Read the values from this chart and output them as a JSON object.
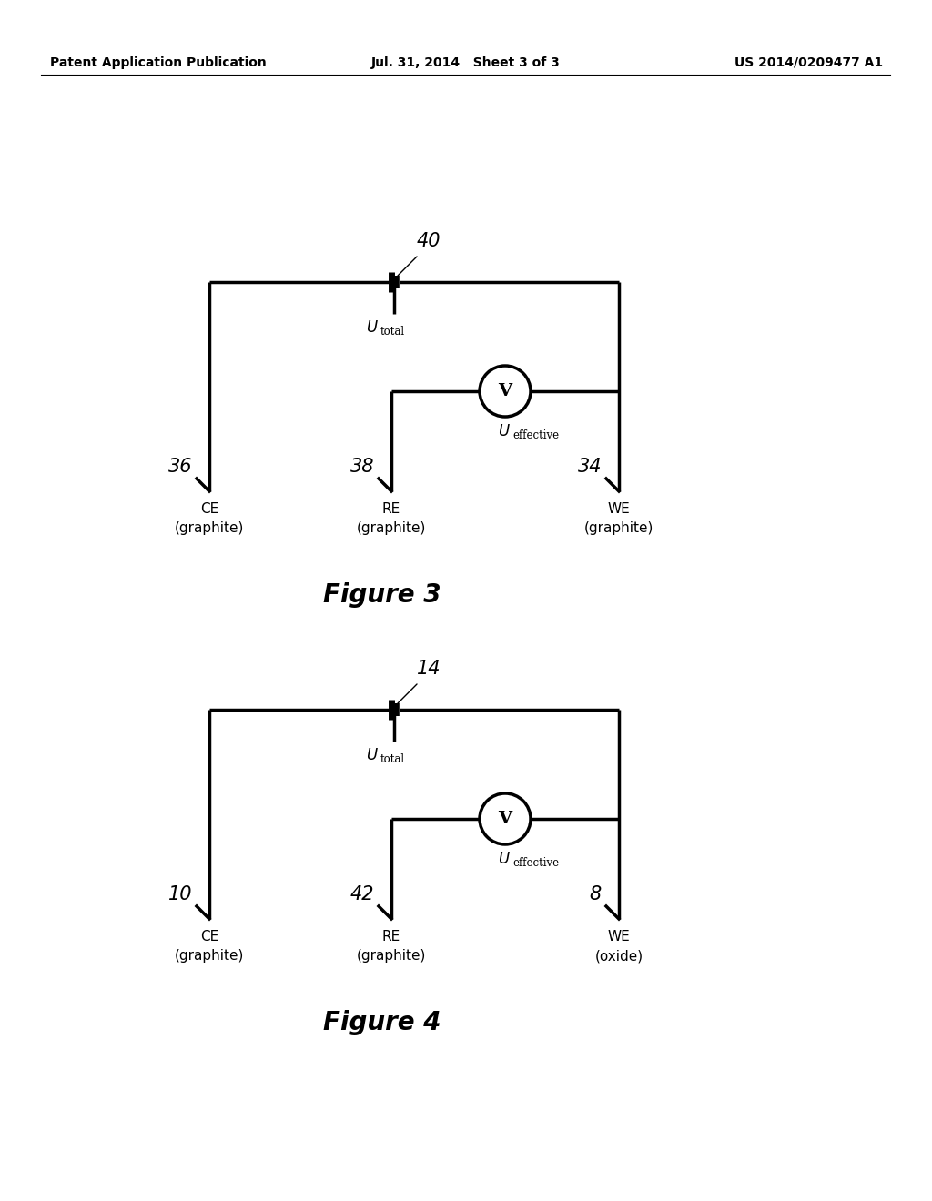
{
  "bg_color": "#ffffff",
  "header_left": "Patent Application Publication",
  "header_mid": "Jul. 31, 2014   Sheet 3 of 3",
  "header_right": "US 2014/0209477 A1",
  "fig3": {
    "battery_label": "40",
    "left_label": "36",
    "mid_label": "38",
    "right_label": "34",
    "ce_label": "CE\n(graphite)",
    "re_label": "RE\n(graphite)",
    "we_label": "WE\n(graphite)",
    "fig_title": "Figure 3"
  },
  "fig4": {
    "battery_label": "14",
    "left_label": "10",
    "mid_label": "42",
    "right_label": "8",
    "ce_label": "CE\n(graphite)",
    "re_label": "RE\n(graphite)",
    "we_label": "WE\n(oxide)",
    "fig_title": "Figure 4"
  }
}
